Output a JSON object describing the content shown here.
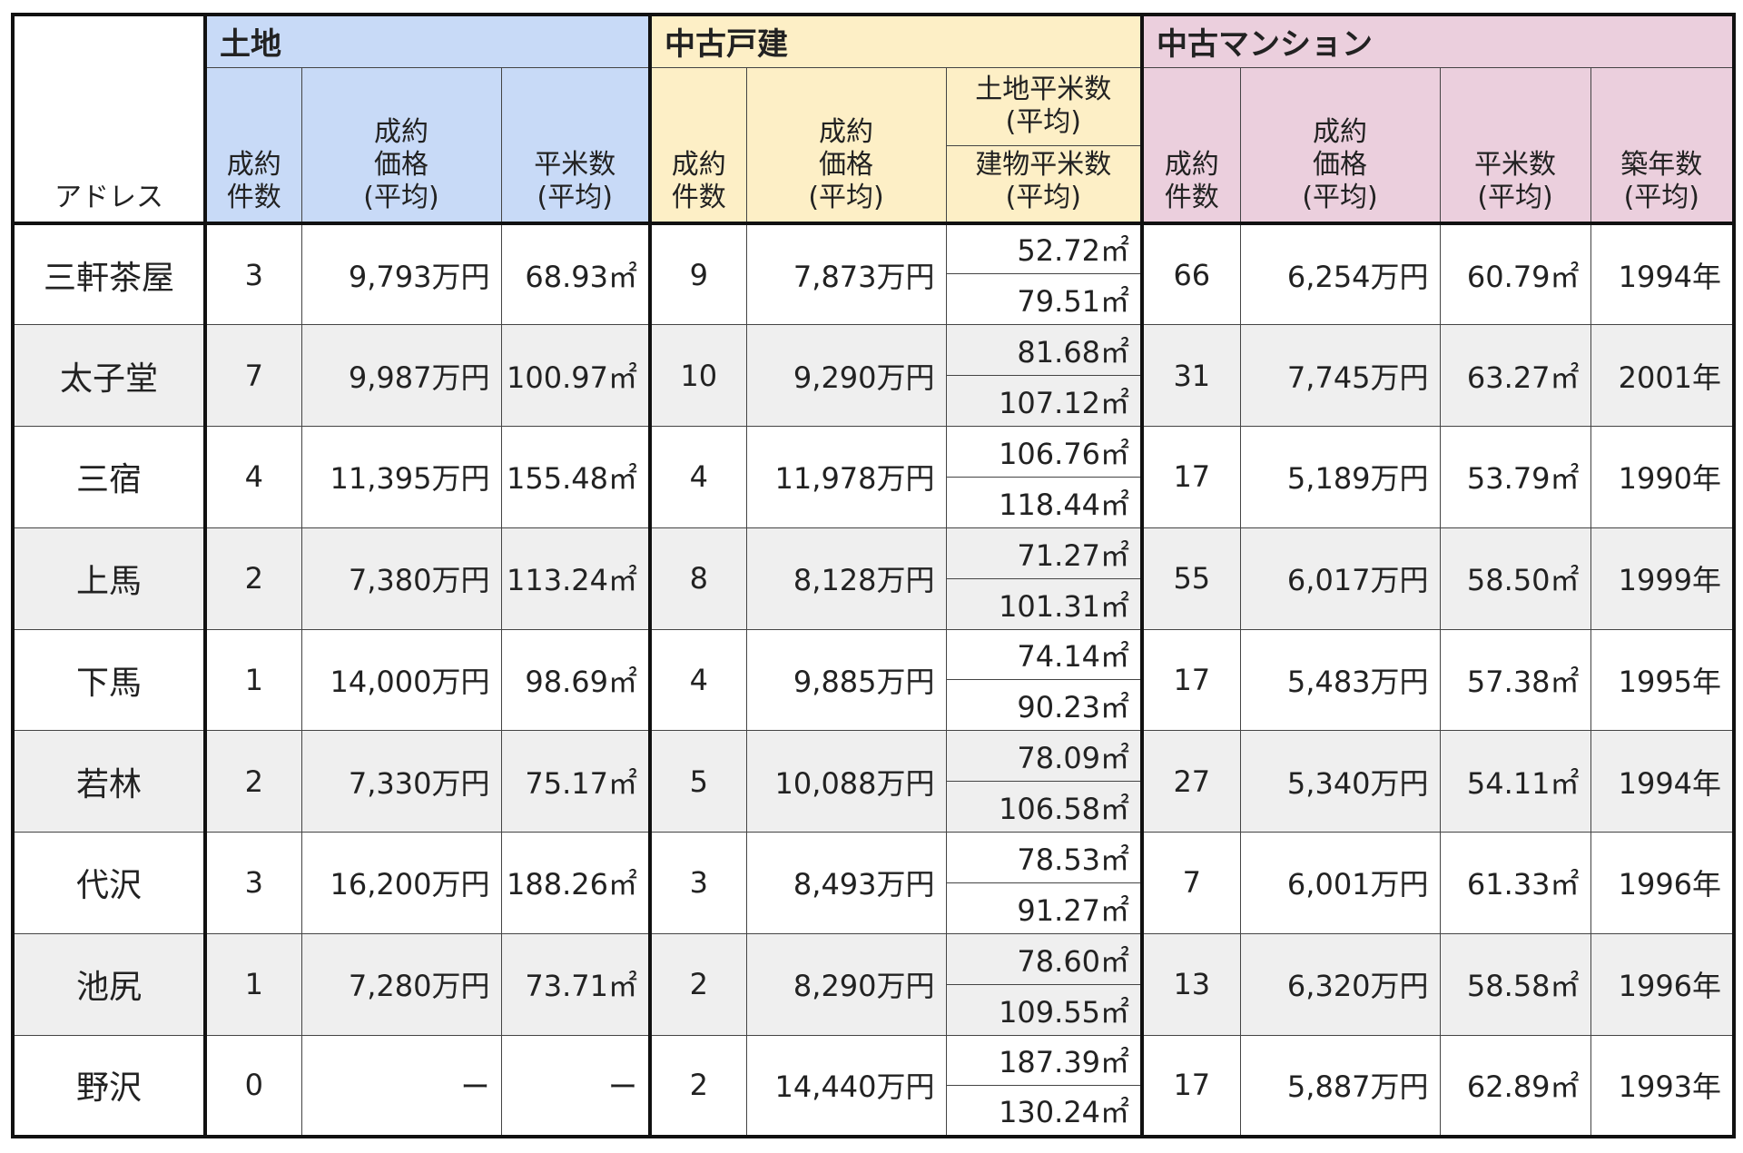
{
  "header": {
    "address_label": "アドレス",
    "groups": {
      "land": "土地",
      "used_house": "中古戸建",
      "used_mansion": "中古マンション"
    },
    "land_cols": {
      "count": "成約\n件数",
      "price": "成約\n価格\n(平均)",
      "area": "平米数\n(平均)"
    },
    "house_cols": {
      "count": "成約\n件数",
      "price": "成約\n価格\n(平均)",
      "land_area": "土地平米数\n(平均)",
      "building_area": "建物平米数\n(平均)"
    },
    "mansion_cols": {
      "count": "成約\n件数",
      "price": "成約\n価格\n(平均)",
      "area": "平米数\n(平均)",
      "age": "築年数\n(平均)"
    }
  },
  "rows": [
    {
      "address": "三軒茶屋",
      "land_count": "3",
      "land_price": "9,793万円",
      "land_area": "68.93㎡",
      "house_count": "9",
      "house_price": "7,873万円",
      "house_land_area": "52.72㎡",
      "house_building_area": "79.51㎡",
      "mansion_count": "66",
      "mansion_price": "6,254万円",
      "mansion_area": "60.79㎡",
      "mansion_year": "1994年"
    },
    {
      "address": "太子堂",
      "land_count": "7",
      "land_price": "9,987万円",
      "land_area": "100.97㎡",
      "house_count": "10",
      "house_price": "9,290万円",
      "house_land_area": "81.68㎡",
      "house_building_area": "107.12㎡",
      "mansion_count": "31",
      "mansion_price": "7,745万円",
      "mansion_area": "63.27㎡",
      "mansion_year": "2001年"
    },
    {
      "address": "三宿",
      "land_count": "4",
      "land_price": "11,395万円",
      "land_area": "155.48㎡",
      "house_count": "4",
      "house_price": "11,978万円",
      "house_land_area": "106.76㎡",
      "house_building_area": "118.44㎡",
      "mansion_count": "17",
      "mansion_price": "5,189万円",
      "mansion_area": "53.79㎡",
      "mansion_year": "1990年"
    },
    {
      "address": "上馬",
      "land_count": "2",
      "land_price": "7,380万円",
      "land_area": "113.24㎡",
      "house_count": "8",
      "house_price": "8,128万円",
      "house_land_area": "71.27㎡",
      "house_building_area": "101.31㎡",
      "mansion_count": "55",
      "mansion_price": "6,017万円",
      "mansion_area": "58.50㎡",
      "mansion_year": "1999年"
    },
    {
      "address": "下馬",
      "land_count": "1",
      "land_price": "14,000万円",
      "land_area": "98.69㎡",
      "house_count": "4",
      "house_price": "9,885万円",
      "house_land_area": "74.14㎡",
      "house_building_area": "90.23㎡",
      "mansion_count": "17",
      "mansion_price": "5,483万円",
      "mansion_area": "57.38㎡",
      "mansion_year": "1995年"
    },
    {
      "address": "若林",
      "land_count": "2",
      "land_price": "7,330万円",
      "land_area": "75.17㎡",
      "house_count": "5",
      "house_price": "10,088万円",
      "house_land_area": "78.09㎡",
      "house_building_area": "106.58㎡",
      "mansion_count": "27",
      "mansion_price": "5,340万円",
      "mansion_area": "54.11㎡",
      "mansion_year": "1994年"
    },
    {
      "address": "代沢",
      "land_count": "3",
      "land_price": "16,200万円",
      "land_area": "188.26㎡",
      "house_count": "3",
      "house_price": "8,493万円",
      "house_land_area": "78.53㎡",
      "house_building_area": "91.27㎡",
      "mansion_count": "7",
      "mansion_price": "6,001万円",
      "mansion_area": "61.33㎡",
      "mansion_year": "1996年"
    },
    {
      "address": "池尻",
      "land_count": "1",
      "land_price": "7,280万円",
      "land_area": "73.71㎡",
      "house_count": "2",
      "house_price": "8,290万円",
      "house_land_area": "78.60㎡",
      "house_building_area": "109.55㎡",
      "mansion_count": "13",
      "mansion_price": "6,320万円",
      "mansion_area": "58.58㎡",
      "mansion_year": "1996年"
    },
    {
      "address": "野沢",
      "land_count": "0",
      "land_price": "ー",
      "land_area": "ー",
      "house_count": "2",
      "house_price": "14,440万円",
      "house_land_area": "187.39㎡",
      "house_building_area": "130.24㎡",
      "mansion_count": "17",
      "mansion_price": "5,887万円",
      "mansion_area": "62.89㎡",
      "mansion_year": "1993年"
    }
  ]
}
